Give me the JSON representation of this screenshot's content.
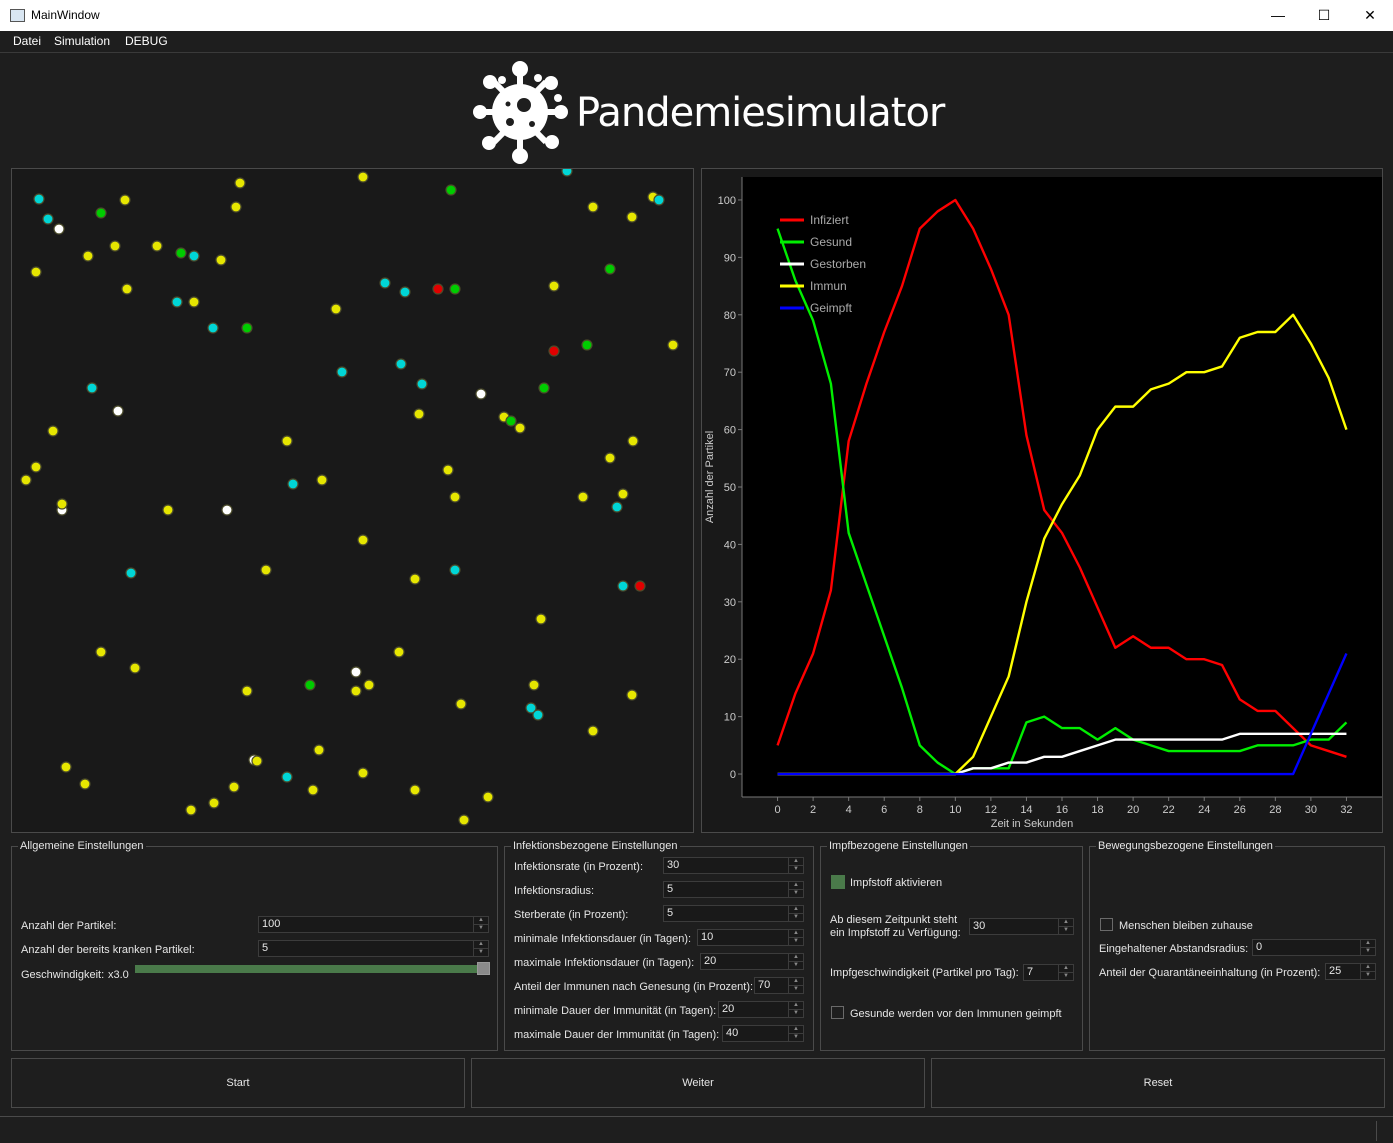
{
  "window": {
    "title": "MainWindow",
    "minimize": "—",
    "maximize": "☐",
    "close": "✕"
  },
  "menu": [
    "Datei",
    "Simulation",
    "DEBUG"
  ],
  "app_title": "Pandemiesimulator",
  "colors": {
    "infected": "#e00000",
    "healthy": "#00cc00",
    "dead": "#ffffff",
    "immune": "#e6e600",
    "vaccinated": "#00d6d6",
    "vaccinated_line": "#0000ff"
  },
  "chart_data": {
    "type": "line",
    "xlabel": "Zeit in Sekunden",
    "ylabel": "Anzahl der Partikel",
    "xlim": [
      -2,
      34
    ],
    "ylim": [
      -4,
      104
    ],
    "xticks": [
      0,
      2,
      4,
      6,
      8,
      10,
      12,
      14,
      16,
      18,
      20,
      22,
      24,
      26,
      28,
      30,
      32
    ],
    "yticks": [
      0,
      10,
      20,
      30,
      40,
      50,
      60,
      70,
      80,
      90,
      100
    ],
    "legend_position": "top-left",
    "x": [
      0,
      1,
      2,
      3,
      4,
      5,
      6,
      7,
      8,
      9,
      10,
      11,
      12,
      13,
      14,
      15,
      16,
      17,
      18,
      19,
      20,
      21,
      22,
      23,
      24,
      25,
      26,
      27,
      28,
      29,
      30,
      31,
      32
    ],
    "series": [
      {
        "name": "Infiziert",
        "color": "#ff0000",
        "values": [
          5,
          14,
          21,
          32,
          58,
          68,
          77,
          85,
          95,
          98,
          100,
          95,
          88,
          80,
          59,
          46,
          42,
          36,
          29,
          22,
          24,
          22,
          22,
          20,
          20,
          19,
          13,
          11,
          11,
          8,
          5,
          4,
          3
        ]
      },
      {
        "name": "Gesund",
        "color": "#00ee00",
        "values": [
          95,
          86,
          79,
          68,
          42,
          33,
          24,
          15,
          5,
          2,
          0,
          1,
          1,
          1,
          9,
          10,
          8,
          8,
          6,
          8,
          6,
          5,
          4,
          4,
          4,
          4,
          4,
          5,
          5,
          5,
          6,
          6,
          9
        ]
      },
      {
        "name": "Gestorben",
        "color": "#ffffff",
        "values": [
          0,
          0,
          0,
          0,
          0,
          0,
          0,
          0,
          0,
          0,
          0,
          1,
          1,
          2,
          2,
          3,
          3,
          4,
          5,
          6,
          6,
          6,
          6,
          6,
          6,
          6,
          7,
          7,
          7,
          7,
          7,
          7,
          7
        ]
      },
      {
        "name": "Immun",
        "color": "#ffff00",
        "values": [
          0,
          0,
          0,
          0,
          0,
          0,
          0,
          0,
          0,
          0,
          0,
          3,
          10,
          17,
          30,
          41,
          47,
          52,
          60,
          64,
          64,
          67,
          68,
          70,
          70,
          71,
          76,
          77,
          77,
          80,
          75,
          69,
          60
        ]
      },
      {
        "name": "Geimpft",
        "color": "#0000ff",
        "values": [
          0,
          0,
          0,
          0,
          0,
          0,
          0,
          0,
          0,
          0,
          0,
          0,
          0,
          0,
          0,
          0,
          0,
          0,
          0,
          0,
          0,
          0,
          0,
          0,
          0,
          0,
          0,
          0,
          0,
          0,
          7,
          14,
          21
        ]
      }
    ]
  },
  "groups": {
    "allgemein": {
      "title": "Allgemeine Einstellungen",
      "particles_label": "Anzahl der Partikel:",
      "particles_value": "100",
      "sick_label": "Anzahl der bereits kranken Partikel:",
      "sick_value": "5",
      "speed_label": "Geschwindigkeit:",
      "speed_value": "x3.0",
      "speed_fraction": 1.0
    },
    "infektion": {
      "title": "Infektionsbezogene Einstellungen",
      "rows": [
        {
          "label": "Infektionsrate (in Prozent):",
          "value": "30"
        },
        {
          "label": "Infektionsradius:",
          "value": "5"
        },
        {
          "label": "Sterberate (in Prozent):",
          "value": "5"
        },
        {
          "label": "minimale Infektionsdauer (in Tagen):",
          "value": "10"
        },
        {
          "label": "maximale Infektionsdauer (in Tagen):",
          "value": "20"
        },
        {
          "label": "Anteil der Immunen nach Genesung (in Prozent):",
          "value": "70"
        },
        {
          "label": "minimale Dauer der Immunität (in Tagen):",
          "value": "20"
        },
        {
          "label": "maximale Dauer der Immunität (in Tagen):",
          "value": "40"
        }
      ]
    },
    "impf": {
      "title": "Impfbezogene Einstellungen",
      "activate_label": "Impfstoff aktivieren",
      "activate_checked": true,
      "from_label_1": "Ab diesem Zeitpunkt steht",
      "from_label_2": "ein Impfstoff zu Verfügung:",
      "from_value": "30",
      "speed_label": "Impfgeschwindigkeit (Partikel pro Tag):",
      "speed_value": "7",
      "healthy_first_label": "Gesunde werden vor den Immunen geimpft",
      "healthy_first_checked": false
    },
    "bewegung": {
      "title": "Bewegungsbezogene Einstellungen",
      "stay_home_label": "Menschen bleiben zuhause",
      "stay_home_checked": false,
      "distance_label": "Eingehaltener Abstandsradius:",
      "distance_value": "0",
      "quarantine_label": "Anteil der Quarantäneeinhaltung (in Prozent):",
      "quarantine_value": "25"
    }
  },
  "buttons": {
    "start": "Start",
    "weiter": "Weiter",
    "reset": "Reset"
  },
  "particles": [
    {
      "t": "v",
      "x": 39,
      "y": 199
    },
    {
      "t": "v",
      "x": 48,
      "y": 219
    },
    {
      "t": "d",
      "x": 59,
      "y": 229
    },
    {
      "t": "h",
      "x": 101,
      "y": 213
    },
    {
      "t": "i",
      "x": 125,
      "y": 200
    },
    {
      "t": "i",
      "x": 240,
      "y": 183
    },
    {
      "t": "i",
      "x": 363,
      "y": 177
    },
    {
      "t": "h",
      "x": 451,
      "y": 190
    },
    {
      "t": "v",
      "x": 567,
      "y": 171
    },
    {
      "t": "i",
      "x": 593,
      "y": 207
    },
    {
      "t": "i",
      "x": 632,
      "y": 217
    },
    {
      "t": "i",
      "x": 653,
      "y": 197
    },
    {
      "t": "v",
      "x": 659,
      "y": 200
    },
    {
      "t": "i",
      "x": 236,
      "y": 207
    },
    {
      "t": "i",
      "x": 115,
      "y": 246
    },
    {
      "t": "i",
      "x": 157,
      "y": 246
    },
    {
      "t": "h",
      "x": 181,
      "y": 253
    },
    {
      "t": "v",
      "x": 194,
      "y": 256
    },
    {
      "t": "i",
      "x": 221,
      "y": 260
    },
    {
      "t": "i",
      "x": 88,
      "y": 256
    },
    {
      "t": "i",
      "x": 36,
      "y": 272
    },
    {
      "t": "i",
      "x": 127,
      "y": 289
    },
    {
      "t": "v",
      "x": 177,
      "y": 302
    },
    {
      "t": "i",
      "x": 194,
      "y": 302
    },
    {
      "t": "v",
      "x": 385,
      "y": 283
    },
    {
      "t": "v",
      "x": 405,
      "y": 292
    },
    {
      "t": "c",
      "x": 438,
      "y": 289
    },
    {
      "t": "h",
      "x": 455,
      "y": 289
    },
    {
      "t": "i",
      "x": 554,
      "y": 286
    },
    {
      "t": "h",
      "x": 610,
      "y": 269
    },
    {
      "t": "i",
      "x": 336,
      "y": 309
    },
    {
      "t": "v",
      "x": 213,
      "y": 328
    },
    {
      "t": "h",
      "x": 247,
      "y": 328
    },
    {
      "t": "c",
      "x": 554,
      "y": 351
    },
    {
      "t": "h",
      "x": 587,
      "y": 345
    },
    {
      "t": "i",
      "x": 673,
      "y": 345
    },
    {
      "t": "v",
      "x": 342,
      "y": 372
    },
    {
      "t": "v",
      "x": 401,
      "y": 364
    },
    {
      "t": "v",
      "x": 422,
      "y": 384
    },
    {
      "t": "h",
      "x": 544,
      "y": 388
    },
    {
      "t": "v",
      "x": 92,
      "y": 388
    },
    {
      "t": "d",
      "x": 118,
      "y": 411
    },
    {
      "t": "d",
      "x": 481,
      "y": 394
    },
    {
      "t": "i",
      "x": 419,
      "y": 414
    },
    {
      "t": "i",
      "x": 504,
      "y": 417
    },
    {
      "t": "h",
      "x": 511,
      "y": 421
    },
    {
      "t": "i",
      "x": 520,
      "y": 428
    },
    {
      "t": "i",
      "x": 53,
      "y": 431
    },
    {
      "t": "i",
      "x": 287,
      "y": 441
    },
    {
      "t": "i",
      "x": 633,
      "y": 441
    },
    {
      "t": "i",
      "x": 36,
      "y": 467
    },
    {
      "t": "i",
      "x": 610,
      "y": 458
    },
    {
      "t": "i",
      "x": 448,
      "y": 470
    },
    {
      "t": "i",
      "x": 26,
      "y": 480
    },
    {
      "t": "v",
      "x": 293,
      "y": 484
    },
    {
      "t": "i",
      "x": 322,
      "y": 480
    },
    {
      "t": "i",
      "x": 455,
      "y": 497
    },
    {
      "t": "i",
      "x": 583,
      "y": 497
    },
    {
      "t": "i",
      "x": 623,
      "y": 494
    },
    {
      "t": "v",
      "x": 617,
      "y": 507
    },
    {
      "t": "d",
      "x": 62,
      "y": 510
    },
    {
      "t": "i",
      "x": 62,
      "y": 504
    },
    {
      "t": "i",
      "x": 168,
      "y": 510
    },
    {
      "t": "d",
      "x": 227,
      "y": 510
    },
    {
      "t": "i",
      "x": 363,
      "y": 540
    },
    {
      "t": "v",
      "x": 131,
      "y": 573
    },
    {
      "t": "i",
      "x": 266,
      "y": 570
    },
    {
      "t": "i",
      "x": 415,
      "y": 579
    },
    {
      "t": "v",
      "x": 455,
      "y": 570
    },
    {
      "t": "v",
      "x": 623,
      "y": 586
    },
    {
      "t": "c",
      "x": 640,
      "y": 586
    },
    {
      "t": "i",
      "x": 541,
      "y": 619
    },
    {
      "t": "i",
      "x": 101,
      "y": 652
    },
    {
      "t": "i",
      "x": 399,
      "y": 652
    },
    {
      "t": "i",
      "x": 135,
      "y": 668
    },
    {
      "t": "d",
      "x": 356,
      "y": 672
    },
    {
      "t": "h",
      "x": 310,
      "y": 685
    },
    {
      "t": "i",
      "x": 247,
      "y": 691
    },
    {
      "t": "i",
      "x": 356,
      "y": 691
    },
    {
      "t": "i",
      "x": 369,
      "y": 685
    },
    {
      "t": "i",
      "x": 534,
      "y": 685
    },
    {
      "t": "i",
      "x": 632,
      "y": 695
    },
    {
      "t": "i",
      "x": 461,
      "y": 704
    },
    {
      "t": "v",
      "x": 531,
      "y": 708
    },
    {
      "t": "v",
      "x": 538,
      "y": 715
    },
    {
      "t": "i",
      "x": 593,
      "y": 731
    },
    {
      "t": "i",
      "x": 319,
      "y": 750
    },
    {
      "t": "d",
      "x": 254,
      "y": 760
    },
    {
      "t": "i",
      "x": 257,
      "y": 761
    },
    {
      "t": "i",
      "x": 66,
      "y": 767
    },
    {
      "t": "v",
      "x": 287,
      "y": 777
    },
    {
      "t": "i",
      "x": 363,
      "y": 773
    },
    {
      "t": "i",
      "x": 85,
      "y": 784
    },
    {
      "t": "i",
      "x": 234,
      "y": 787
    },
    {
      "t": "i",
      "x": 313,
      "y": 790
    },
    {
      "t": "i",
      "x": 415,
      "y": 790
    },
    {
      "t": "i",
      "x": 488,
      "y": 797
    },
    {
      "t": "i",
      "x": 214,
      "y": 803
    },
    {
      "t": "i",
      "x": 191,
      "y": 810
    },
    {
      "t": "i",
      "x": 464,
      "y": 820
    }
  ]
}
